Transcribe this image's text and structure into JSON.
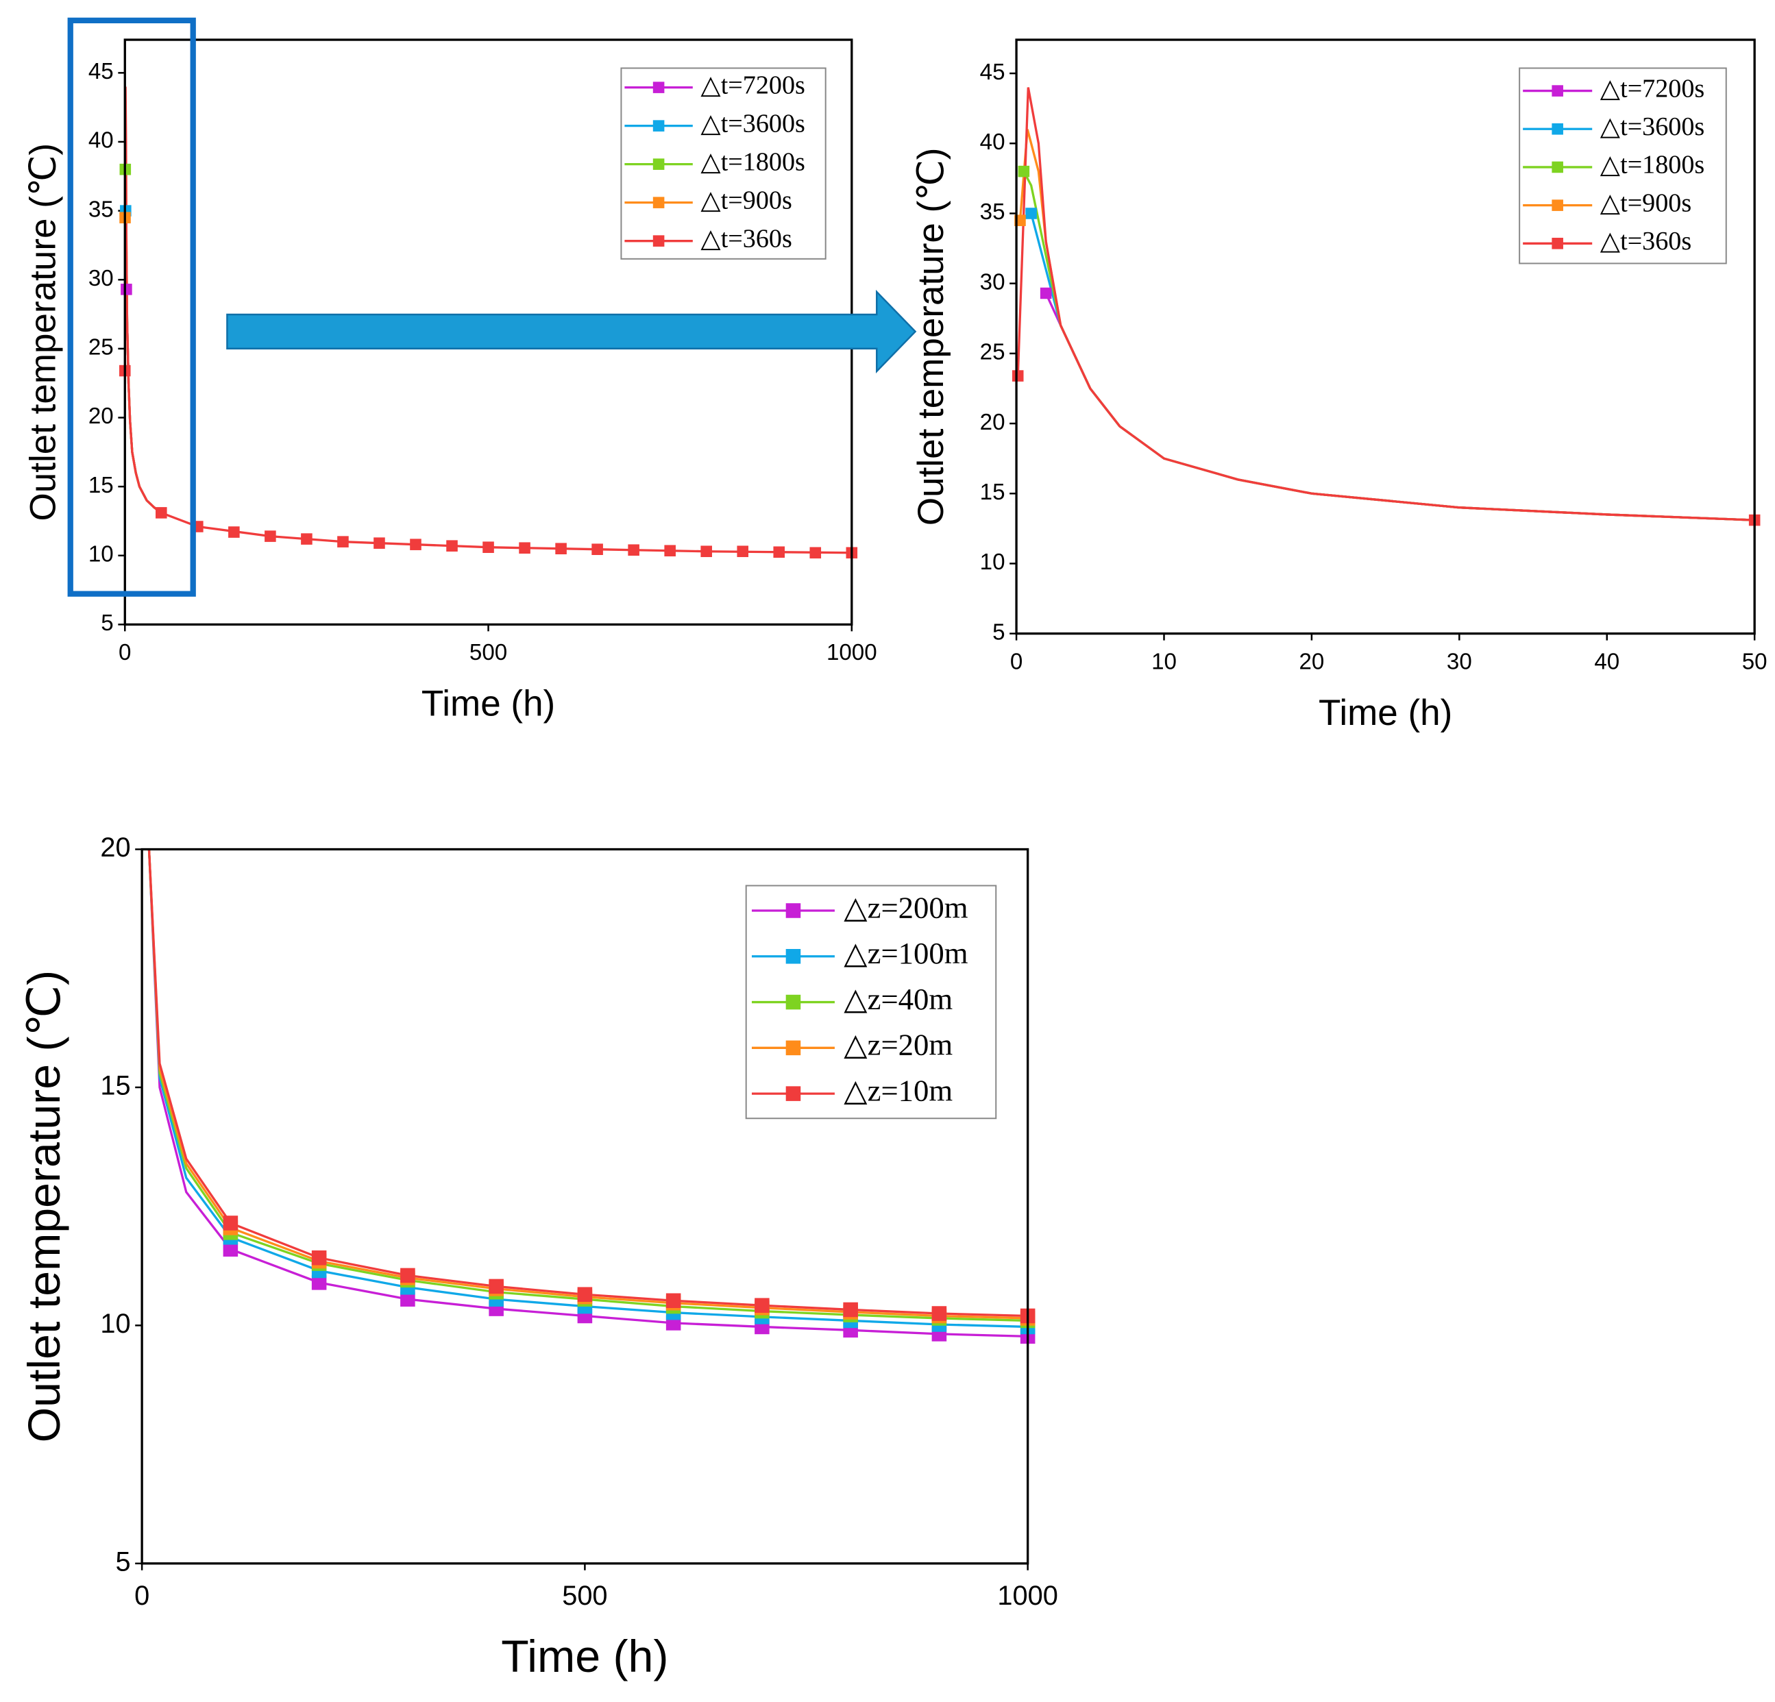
{
  "chart_data": [
    {
      "type": "line",
      "xlabel": "Time (h)",
      "ylabel": "Outlet temperature (℃)",
      "xlim": [
        0,
        1000
      ],
      "ylim": [
        5,
        47.4
      ],
      "xticks": [
        0,
        500,
        1000
      ],
      "yticks": [
        5,
        10,
        15,
        20,
        25,
        30,
        35,
        40,
        45
      ],
      "series": [
        {
          "name": "△t=7200s",
          "color": "#c71fd6",
          "x": [
            2,
            3,
            5,
            7,
            10,
            15,
            20,
            30,
            40,
            50
          ],
          "values": [
            29.3,
            27,
            22.5,
            19.8,
            17.5,
            16,
            15,
            14,
            13.5,
            13.1
          ],
          "markers": {
            "x": [
              2
            ],
            "values": [
              29.3
            ]
          }
        },
        {
          "name": "△t=3600s",
          "color": "#10a8e8",
          "x": [
            1,
            2,
            3,
            5,
            7,
            10,
            15,
            20,
            30,
            40,
            50
          ],
          "values": [
            35,
            31,
            27,
            22.5,
            19.8,
            17.5,
            16,
            15,
            14,
            13.5,
            13.1
          ],
          "markers": {
            "x": [
              1
            ],
            "values": [
              35
            ]
          }
        },
        {
          "name": "△t=1800s",
          "color": "#7ed321",
          "x": [
            0.5,
            1,
            2,
            3,
            5,
            7,
            10,
            15,
            20,
            30,
            40,
            50
          ],
          "values": [
            38,
            37,
            32,
            27,
            22.5,
            19.8,
            17.5,
            16,
            15,
            14,
            13.5,
            13.1
          ],
          "markers": {
            "x": [
              0.5
            ],
            "values": [
              38
            ]
          }
        },
        {
          "name": "△t=900s",
          "color": "#ff8c1a",
          "x": [
            0.25,
            0.75,
            1.5,
            2,
            3,
            5,
            7,
            10,
            15,
            20,
            30,
            40,
            50
          ],
          "values": [
            34.5,
            41,
            38,
            33,
            27,
            22.5,
            19.8,
            17.5,
            16,
            15,
            14,
            13.5,
            13.1
          ],
          "markers": {
            "x": [
              0.25
            ],
            "values": [
              34.5
            ]
          }
        },
        {
          "name": "△t=360s",
          "color": "#f03c3c",
          "x": [
            0.1,
            0.8,
            1.5,
            2,
            3,
            5,
            7,
            10,
            15,
            20,
            30,
            40,
            50,
            100,
            200,
            300,
            400,
            500,
            600,
            700,
            800,
            900,
            1000
          ],
          "values": [
            23.4,
            44,
            40,
            33,
            27,
            22.5,
            19.8,
            17.5,
            16,
            15,
            14,
            13.5,
            13.1,
            12.1,
            11.4,
            11.0,
            10.8,
            10.6,
            10.5,
            10.4,
            10.3,
            10.25,
            10.2
          ],
          "markers": {
            "x": [
              0,
              50,
              100,
              150,
              200,
              250,
              300,
              350,
              400,
              450,
              500,
              550,
              600,
              650,
              700,
              750,
              800,
              850,
              900,
              950,
              1000
            ],
            "values": [
              23.4,
              13.1,
              12.1,
              11.7,
              11.4,
              11.2,
              11.0,
              10.9,
              10.8,
              10.7,
              10.6,
              10.55,
              10.5,
              10.45,
              10.4,
              10.35,
              10.3,
              10.3,
              10.25,
              10.2,
              10.2
            ]
          }
        }
      ]
    },
    {
      "type": "line",
      "xlabel": "Time (h)",
      "ylabel": "Outlet temperature (℃)",
      "xlim": [
        0,
        50
      ],
      "ylim": [
        5,
        47.4
      ],
      "xticks": [
        0,
        10,
        20,
        30,
        40,
        50
      ],
      "yticks": [
        5,
        10,
        15,
        20,
        25,
        30,
        35,
        40,
        45
      ],
      "series": [
        {
          "name": "△t=7200s",
          "color": "#c71fd6",
          "x": [
            2,
            3,
            5,
            7,
            10,
            15,
            20,
            30,
            40,
            50
          ],
          "values": [
            29.3,
            27,
            22.5,
            19.8,
            17.5,
            16,
            15,
            14,
            13.5,
            13.1
          ],
          "markers": {
            "x": [
              2
            ],
            "values": [
              29.3
            ]
          }
        },
        {
          "name": "△t=3600s",
          "color": "#10a8e8",
          "x": [
            1,
            2,
            3,
            5,
            7,
            10,
            15,
            20,
            30,
            40,
            50
          ],
          "values": [
            35,
            31,
            27,
            22.5,
            19.8,
            17.5,
            16,
            15,
            14,
            13.5,
            13.1
          ],
          "markers": {
            "x": [
              1
            ],
            "values": [
              35
            ]
          }
        },
        {
          "name": "△t=1800s",
          "color": "#7ed321",
          "x": [
            0.5,
            1,
            2,
            3,
            5,
            7,
            10,
            15,
            20,
            30,
            40,
            50
          ],
          "values": [
            38,
            37,
            32,
            27,
            22.5,
            19.8,
            17.5,
            16,
            15,
            14,
            13.5,
            13.1
          ],
          "markers": {
            "x": [
              0.5
            ],
            "values": [
              38
            ]
          }
        },
        {
          "name": "△t=900s",
          "color": "#ff8c1a",
          "x": [
            0.25,
            0.75,
            1.5,
            2,
            3,
            5,
            7,
            10,
            15,
            20,
            30,
            40,
            50
          ],
          "values": [
            34.5,
            41,
            38,
            33,
            27,
            22.5,
            19.8,
            17.5,
            16,
            15,
            14,
            13.5,
            13.1
          ],
          "markers": {
            "x": [
              0.25
            ],
            "values": [
              34.5
            ]
          }
        },
        {
          "name": "△t=360s",
          "color": "#f03c3c",
          "x": [
            0.1,
            0.8,
            1.5,
            2,
            3,
            5,
            7,
            10,
            15,
            20,
            30,
            40,
            50
          ],
          "values": [
            23.4,
            44,
            40,
            33,
            27,
            22.5,
            19.8,
            17.5,
            16,
            15,
            14,
            13.5,
            13.1
          ],
          "markers": {
            "x": [
              0.1,
              50
            ],
            "values": [
              23.4,
              13.1
            ]
          }
        }
      ]
    },
    {
      "type": "line",
      "xlabel": "Time (h)",
      "ylabel": "Outlet temperature (℃)",
      "xlim": [
        0,
        1000
      ],
      "ylim": [
        5,
        20
      ],
      "xticks": [
        0,
        500,
        1000
      ],
      "yticks": [
        5,
        10,
        15,
        20
      ],
      "series": [
        {
          "name": "△z=200m",
          "color": "#c71fd6",
          "x": [
            8,
            20,
            50,
            100,
            200,
            300,
            400,
            500,
            600,
            700,
            800,
            900,
            1000
          ],
          "values": [
            20,
            15,
            12.8,
            11.6,
            10.9,
            10.55,
            10.35,
            10.2,
            10.05,
            9.97,
            9.9,
            9.82,
            9.77
          ],
          "markers": {
            "x": [
              100,
              200,
              300,
              400,
              500,
              600,
              700,
              800,
              900,
              1000
            ],
            "values": [
              11.6,
              10.9,
              10.55,
              10.35,
              10.2,
              10.05,
              9.97,
              9.9,
              9.82,
              9.77
            ]
          }
        },
        {
          "name": "△z=100m",
          "color": "#10a8e8",
          "x": [
            8,
            20,
            50,
            100,
            200,
            300,
            400,
            500,
            600,
            700,
            800,
            900,
            1000
          ],
          "values": [
            20,
            15.2,
            13.1,
            11.85,
            11.15,
            10.8,
            10.55,
            10.4,
            10.27,
            10.18,
            10.1,
            10.02,
            9.97
          ],
          "markers": {
            "x": [
              100,
              200,
              300,
              400,
              500,
              600,
              700,
              800,
              900,
              1000
            ],
            "values": [
              11.85,
              11.15,
              10.8,
              10.55,
              10.4,
              10.27,
              10.18,
              10.1,
              10.02,
              9.97
            ]
          }
        },
        {
          "name": "△z=40m",
          "color": "#7ed321",
          "x": [
            8,
            20,
            50,
            100,
            200,
            300,
            400,
            500,
            600,
            700,
            800,
            900,
            1000
          ],
          "values": [
            20,
            15.3,
            13.3,
            11.95,
            11.3,
            10.95,
            10.7,
            10.55,
            10.4,
            10.3,
            10.22,
            10.15,
            10.1
          ],
          "markers": {
            "x": [
              100,
              200,
              300,
              400,
              500,
              600,
              700,
              800,
              900,
              1000
            ],
            "values": [
              11.95,
              11.3,
              10.95,
              10.7,
              10.55,
              10.4,
              10.3,
              10.22,
              10.15,
              10.1
            ]
          }
        },
        {
          "name": "△z=20m",
          "color": "#ff8c1a",
          "x": [
            8,
            20,
            50,
            100,
            200,
            300,
            400,
            500,
            600,
            700,
            800,
            900,
            1000
          ],
          "values": [
            20,
            15.4,
            13.4,
            12.05,
            11.35,
            11.0,
            10.77,
            10.6,
            10.47,
            10.37,
            10.28,
            10.2,
            10.15
          ],
          "markers": {
            "x": [
              100,
              200,
              300,
              400,
              500,
              600,
              700,
              800,
              900,
              1000
            ],
            "values": [
              12.05,
              11.35,
              11.0,
              10.77,
              10.6,
              10.47,
              10.37,
              10.28,
              10.2,
              10.15
            ]
          }
        },
        {
          "name": "△z=10m",
          "color": "#f03c3c",
          "x": [
            8,
            20,
            50,
            100,
            200,
            300,
            400,
            500,
            600,
            700,
            800,
            900,
            1000
          ],
          "values": [
            20,
            15.5,
            13.5,
            12.15,
            11.42,
            11.05,
            10.82,
            10.65,
            10.52,
            10.42,
            10.33,
            10.25,
            10.2
          ],
          "markers": {
            "x": [
              100,
              200,
              300,
              400,
              500,
              600,
              700,
              800,
              900,
              1000
            ],
            "values": [
              12.15,
              11.42,
              11.05,
              10.82,
              10.65,
              10.52,
              10.42,
              10.33,
              10.25,
              10.2
            ]
          }
        }
      ]
    }
  ]
}
